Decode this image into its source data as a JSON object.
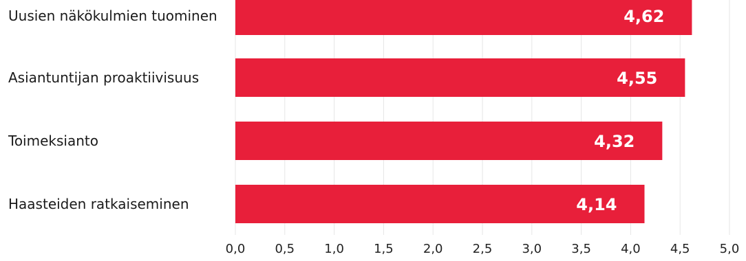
{
  "chart_data": {
    "type": "bar",
    "orientation": "horizontal",
    "categories": [
      "Uusien näkökulmien tuominen",
      "Asiantuntijan proaktiivisuus",
      "Toimeksianto",
      "Haasteiden ratkaiseminen"
    ],
    "values": [
      4.62,
      4.55,
      4.32,
      4.14
    ],
    "value_labels": [
      "4,62",
      "4,55",
      "4,32",
      "4,14"
    ],
    "xlim": [
      0,
      5
    ],
    "x_ticks": [
      0,
      0.5,
      1.0,
      1.5,
      2.0,
      2.5,
      3.0,
      3.5,
      4.0,
      4.5,
      5.0
    ],
    "x_tick_labels": [
      "0,0",
      "0,5",
      "1,0",
      "1,5",
      "2,0",
      "2,5",
      "3,0",
      "3,5",
      "4,0",
      "4,5",
      "5,0"
    ],
    "bar_color": "#e81f3a",
    "grid_color": "#e6e6e6",
    "grid": true,
    "title": "",
    "xlabel": "",
    "ylabel": ""
  }
}
